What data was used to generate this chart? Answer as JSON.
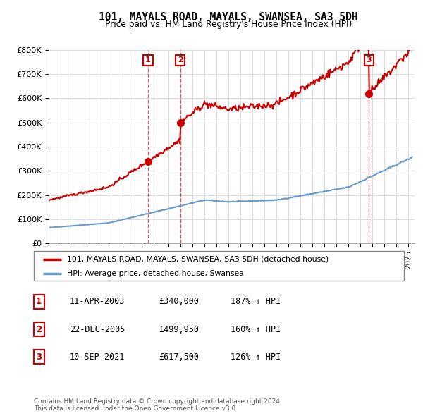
{
  "title": "101, MAYALS ROAD, MAYALS, SWANSEA, SA3 5DH",
  "subtitle": "Price paid vs. HM Land Registry's House Price Index (HPI)",
  "xlim_start": 1995.0,
  "xlim_end": 2025.5,
  "ylim_min": 0,
  "ylim_max": 800000,
  "yticks": [
    0,
    100000,
    200000,
    300000,
    400000,
    500000,
    600000,
    700000,
    800000
  ],
  "ytick_labels": [
    "£0",
    "£100K",
    "£200K",
    "£300K",
    "£400K",
    "£500K",
    "£600K",
    "£700K",
    "£800K"
  ],
  "property_line_color": "#cc0000",
  "hpi_line_color": "#6699cc",
  "transactions": [
    {
      "id": 1,
      "date": 2003.28,
      "price": 340000,
      "label": "1"
    },
    {
      "id": 2,
      "date": 2005.97,
      "price": 499950,
      "label": "2"
    },
    {
      "id": 3,
      "date": 2021.7,
      "price": 617500,
      "label": "3"
    }
  ],
  "legend_property": "101, MAYALS ROAD, MAYALS, SWANSEA, SA3 5DH (detached house)",
  "legend_hpi": "HPI: Average price, detached house, Swansea",
  "footnote": "Contains HM Land Registry data © Crown copyright and database right 2024.\nThis data is licensed under the Open Government Licence v3.0.",
  "table_rows": [
    {
      "num": "1",
      "date": "11-APR-2003",
      "price": "£340,000",
      "pct": "187% ↑ HPI"
    },
    {
      "num": "2",
      "date": "22-DEC-2005",
      "price": "£499,950",
      "pct": "160% ↑ HPI"
    },
    {
      "num": "3",
      "date": "10-SEP-2021",
      "price": "£617,500",
      "pct": "126% ↑ HPI"
    }
  ],
  "background_color": "#ffffff",
  "grid_color": "#dddddd"
}
